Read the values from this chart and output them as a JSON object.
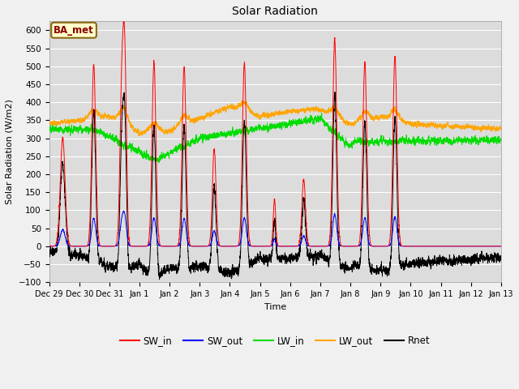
{
  "title": "Solar Radiation",
  "xlabel": "Time",
  "ylabel": "Solar Radiation (W/m2)",
  "ylim": [
    -100,
    625
  ],
  "yticks": [
    -100,
    -50,
    0,
    50,
    100,
    150,
    200,
    250,
    300,
    350,
    400,
    450,
    500,
    550,
    600
  ],
  "colors": {
    "SW_in": "#ff0000",
    "SW_out": "#0000ff",
    "LW_in": "#00dd00",
    "LW_out": "#ffa500",
    "Rnet": "#000000"
  },
  "xtick_labels": [
    "Dec 29",
    "Dec 30",
    "Dec 31",
    "Jan 1",
    "Jan 2",
    "Jan 3",
    "Jan 4",
    "Jan 5",
    "Jan 6",
    "Jan 7",
    "Jan 8",
    "Jan 9",
    "Jan 10",
    "Jan 11",
    "Jan 12",
    "Jan 13"
  ],
  "annotation_text": "BA_met",
  "annotation_bg": "#ffffcc",
  "annotation_border": "#8B6914",
  "grid_color": "#ffffff",
  "fig_bg": "#e8e8e8",
  "ax_bg": "#dcdcdc",
  "linewidth": 0.7,
  "n_points": 3600
}
